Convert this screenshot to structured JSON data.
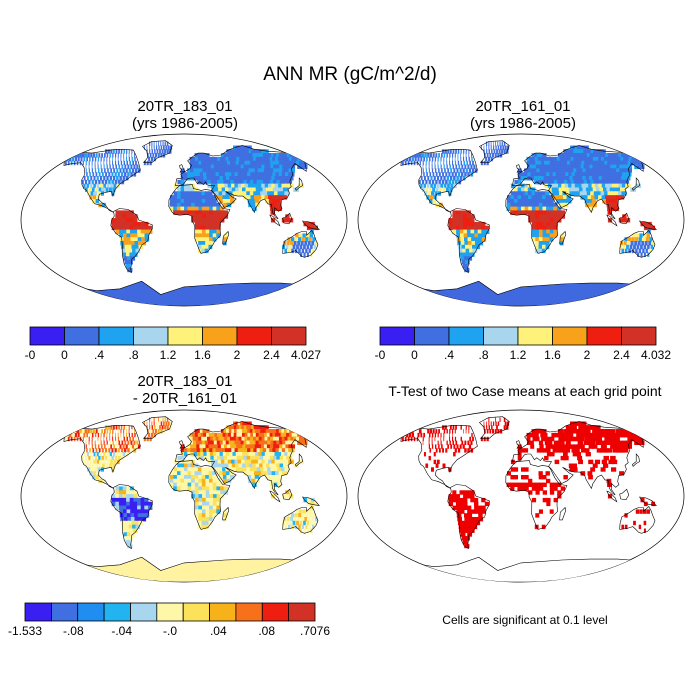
{
  "figure": {
    "title": "ANN MR (gC/m^2/d)"
  },
  "panels": [
    {
      "id": "case1",
      "title_line1": "20TR_183_01",
      "title_line2": "(yrs 1986-2005)",
      "colorbar": {
        "labels": [
          "-0",
          "0",
          ".4",
          ".8",
          "1.2",
          "1.6",
          "2",
          "2.4",
          "4.027"
        ],
        "colors": [
          "#3a1ff2",
          "#3f6fe0",
          "#1fa3f0",
          "#a8d6ee",
          "#fff27a",
          "#f7a21a",
          "#ee1f10",
          "#d23226"
        ]
      }
    },
    {
      "id": "case2",
      "title_line1": "20TR_161_01",
      "title_line2": "(yrs 1986-2005)",
      "colorbar": {
        "labels": [
          "-0",
          "0",
          ".4",
          ".8",
          "1.2",
          "1.6",
          "2",
          "2.4",
          "4.032"
        ],
        "colors": [
          "#3a1ff2",
          "#3f6fe0",
          "#1fa3f0",
          "#a8d6ee",
          "#fff27a",
          "#f7a21a",
          "#ee1f10",
          "#d23226"
        ]
      }
    },
    {
      "id": "diff",
      "title_line1": "20TR_183_01",
      "title_line2": "- 20TR_161_01",
      "colorbar": {
        "labels": [
          "-1.533",
          "-.08",
          "-.04",
          "-.0",
          ".04",
          ".08",
          ".7076"
        ],
        "colors": [
          "#3a1ff2",
          "#3f6fe0",
          "#1f8ef0",
          "#21b4f0",
          "#a8d6ee",
          "#fff7a8",
          "#fbe25a",
          "#f7b21a",
          "#f7701a",
          "#ee1f10",
          "#d23226"
        ]
      }
    },
    {
      "id": "ttest",
      "title": "T-Test of two Case means at each grid point",
      "note": "Cells are significant at 0.1 level"
    }
  ],
  "colors": {
    "ocean": "#ffffff",
    "coast": "#000000",
    "significant": "#ee0000",
    "antarctica_abs": "#4069df",
    "antarctica_diff": "#fff2a0"
  }
}
